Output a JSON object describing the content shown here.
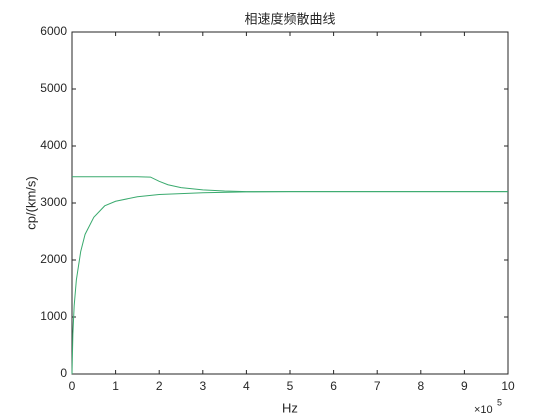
{
  "chart_data": {
    "type": "line",
    "title": "相速度频散曲线",
    "x_label": "Hz",
    "y_label": "cp/(km/s)",
    "x_multiplier": "×10",
    "x_multiplier_exponent": "5",
    "xlim": [
      0,
      10
    ],
    "xticks": [
      0,
      1,
      2,
      3,
      4,
      5,
      6,
      7,
      8,
      9,
      10
    ],
    "ylim": [
      0,
      6000
    ],
    "yticks": [
      0,
      1000,
      2000,
      3000,
      4000,
      5000,
      6000
    ],
    "grid": false,
    "series": [
      {
        "color": "#3aaa6e",
        "x": [
          0,
          0.5,
          1,
          1.5,
          1.8,
          2,
          2.2,
          2.5,
          3,
          3.5,
          4,
          5,
          6,
          8,
          10
        ],
        "values": [
          3460,
          3460,
          3460,
          3460,
          3455,
          3380,
          3320,
          3270,
          3230,
          3210,
          3200,
          3200,
          3200,
          3200,
          3200
        ]
      },
      {
        "color": "#3aaa6e",
        "x": [
          0,
          0.02,
          0.05,
          0.1,
          0.2,
          0.3,
          0.5,
          0.75,
          1,
          1.5,
          2,
          3,
          4,
          5,
          7,
          10
        ],
        "values": [
          0,
          700,
          1200,
          1650,
          2150,
          2450,
          2750,
          2950,
          3030,
          3110,
          3150,
          3180,
          3195,
          3200,
          3200,
          3200
        ]
      }
    ]
  }
}
